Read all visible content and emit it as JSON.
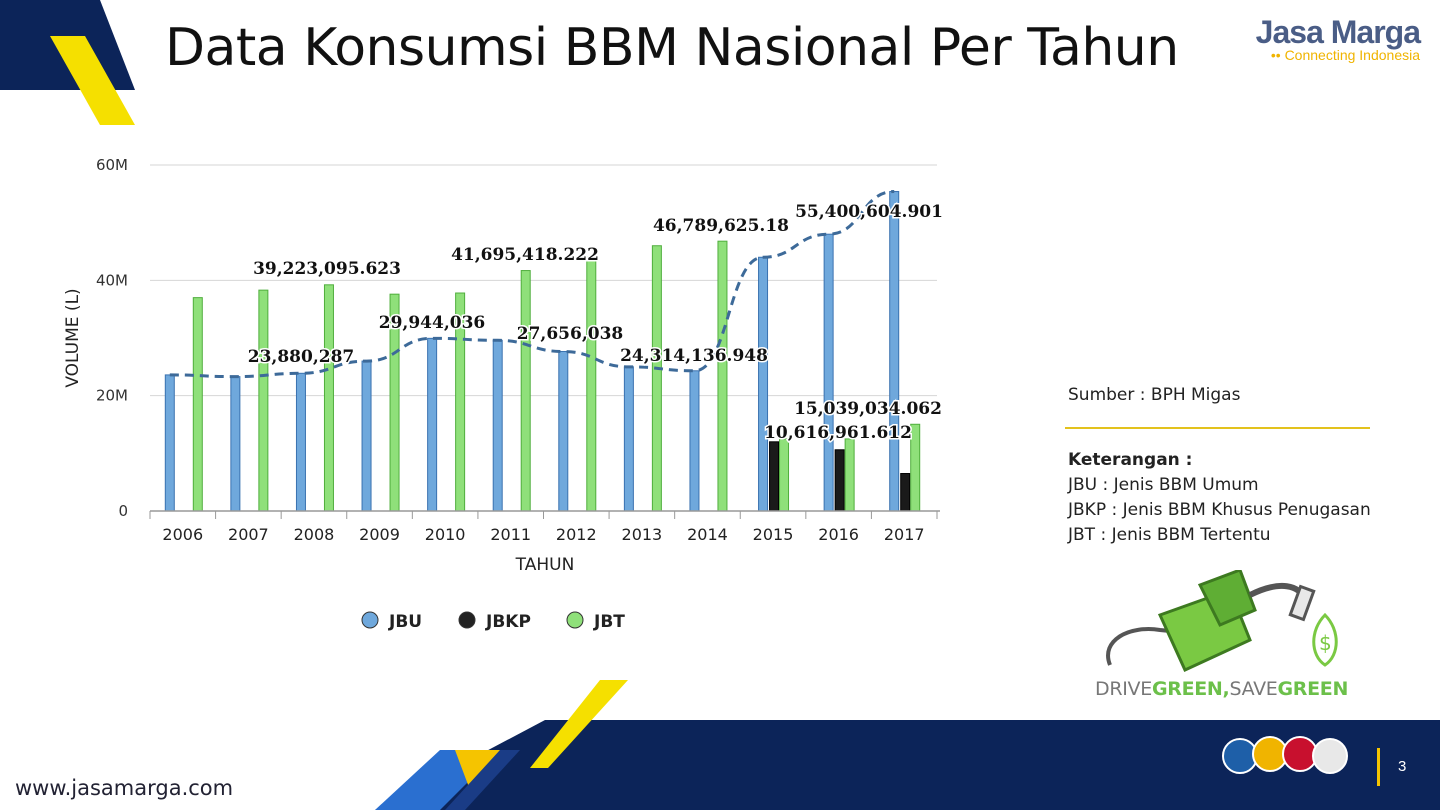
{
  "title": "Data Konsumsi BBM Nasional Per Tahun",
  "brand": {
    "name": "Jasa Marga",
    "tagline": "Connecting Indonesia"
  },
  "side_panel": {
    "source": "Sumber : BPH Migas",
    "legend_title": "Keterangan :",
    "items": [
      "JBU : Jenis BBM Umum",
      "JBKP : Jenis BBM Khusus Penugasan",
      "JBT : Jenis BBM Tertentu"
    ]
  },
  "campaign": {
    "part1": "DRIVE",
    "part2": "GREEN,",
    "part3": "SAVE",
    "part4": "GREEN"
  },
  "footer": {
    "website": "www.jasamarga.com",
    "page": "3"
  },
  "colors": {
    "jbu": "#6fa8dc",
    "jbkp": "#1a1a1a",
    "jbt": "#8fe07a",
    "trend": "#3d6a99",
    "navy": "#0c2459",
    "yellow": "#f5e000"
  },
  "chart_data": {
    "type": "bar",
    "xlabel": "TAHUN",
    "ylabel": "VOLUME (L)",
    "ylim": [
      0,
      60000000
    ],
    "yticks": [
      0,
      20000000,
      40000000,
      60000000
    ],
    "ytick_labels": [
      "0",
      "20M",
      "40M",
      "60M"
    ],
    "legend_position": "bottom",
    "grid": true,
    "categories": [
      "2006",
      "2007",
      "2008",
      "2009",
      "2010",
      "2011",
      "2012",
      "2013",
      "2014",
      "2015",
      "2016",
      "2017"
    ],
    "series": [
      {
        "name": "JBU",
        "values": [
          23600000,
          23300000,
          23880287,
          26000000,
          29944036,
          29600000,
          27656038,
          25000000,
          24314136.948,
          44000000,
          48000000,
          55400604.901
        ]
      },
      {
        "name": "JBKP",
        "values": [
          null,
          null,
          null,
          null,
          null,
          null,
          null,
          null,
          null,
          12000000,
          10616961.612,
          6500000
        ]
      },
      {
        "name": "JBT",
        "values": [
          37000000,
          38300000,
          39223095.623,
          37600000,
          37800000,
          41695418.222,
          44000000,
          46000000,
          46789625.18,
          12500000,
          12500000,
          15039034.062
        ]
      }
    ],
    "trend_series": "JBU",
    "annotations": [
      {
        "text": "39,223,095.623",
        "category": "2008"
      },
      {
        "text": "23,880,287",
        "category": "2008"
      },
      {
        "text": "29,944,036",
        "category": "2010"
      },
      {
        "text": "41,695,418.222",
        "category": "2011"
      },
      {
        "text": "27,656,038",
        "category": "2012"
      },
      {
        "text": "46,789,625.18",
        "category": "2014"
      },
      {
        "text": "24,314,136.948",
        "category": "2014"
      },
      {
        "text": "55,400,604.901",
        "category": "2017"
      },
      {
        "text": "15,039,034.062",
        "category": "2017"
      },
      {
        "text": "10,616,961.612",
        "category": "2016"
      }
    ]
  }
}
